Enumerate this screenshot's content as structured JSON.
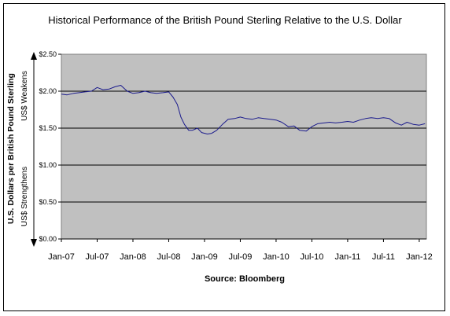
{
  "chart_data": {
    "type": "line",
    "title": "Historical Performance of the British Pound Sterling Relative to the U.S. Dollar",
    "ylabel": "U.S. Dollars per British Pound Sterling",
    "ylabel_top_note": "US$ Weakens",
    "ylabel_bottom_note": "US$ Strengthens",
    "source": "Source: Bloomberg",
    "ylim": [
      0,
      2.5
    ],
    "yticks": [
      0,
      0.5,
      1.0,
      1.5,
      2.0,
      2.5
    ],
    "ytick_labels": [
      "$0.00",
      "$0.50",
      "$1.00",
      "$1.50",
      "$2.00",
      "$2.50"
    ],
    "xlim": [
      2007.0,
      2012.1
    ],
    "xticks": [
      2007.0,
      2007.5,
      2008.0,
      2008.5,
      2009.0,
      2009.5,
      2010.0,
      2010.5,
      2011.0,
      2011.5,
      2012.0
    ],
    "xtick_labels": [
      "Jan-07",
      "Jul-07",
      "Jan-08",
      "Jul-08",
      "Jan-09",
      "Jul-09",
      "Jan-10",
      "Jul-10",
      "Jan-11",
      "Jul-11",
      "Jan-12"
    ],
    "grid": "horizontal",
    "plot_background": "#c0c0c0",
    "line_color": "#1a1a8c",
    "series": [
      {
        "x": [
          2007.0,
          2007.08,
          2007.17,
          2007.25,
          2007.33,
          2007.42,
          2007.5,
          2007.58,
          2007.67,
          2007.75,
          2007.83,
          2007.92,
          2008.0,
          2008.08,
          2008.17,
          2008.25,
          2008.33,
          2008.42,
          2008.5,
          2008.56,
          2008.62,
          2008.67,
          2008.72,
          2008.78,
          2008.83,
          2008.9,
          2008.96,
          2009.04,
          2009.1,
          2009.17,
          2009.25,
          2009.33,
          2009.42,
          2009.5,
          2009.58,
          2009.67,
          2009.75,
          2009.83,
          2009.92,
          2010.0,
          2010.08,
          2010.17,
          2010.25,
          2010.33,
          2010.42,
          2010.5,
          2010.58,
          2010.67,
          2010.75,
          2010.83,
          2010.92,
          2011.0,
          2011.08,
          2011.17,
          2011.25,
          2011.33,
          2011.42,
          2011.5,
          2011.58,
          2011.67,
          2011.75,
          2011.83,
          2011.92,
          2012.0,
          2012.08
        ],
        "values": [
          1.96,
          1.95,
          1.97,
          1.98,
          1.99,
          2.0,
          2.05,
          2.02,
          2.03,
          2.06,
          2.08,
          2.0,
          1.97,
          1.98,
          2.0,
          1.98,
          1.97,
          1.98,
          1.99,
          1.92,
          1.82,
          1.65,
          1.55,
          1.47,
          1.47,
          1.5,
          1.44,
          1.42,
          1.43,
          1.47,
          1.55,
          1.62,
          1.63,
          1.65,
          1.63,
          1.62,
          1.64,
          1.63,
          1.62,
          1.61,
          1.58,
          1.52,
          1.53,
          1.47,
          1.46,
          1.52,
          1.56,
          1.57,
          1.58,
          1.57,
          1.58,
          1.59,
          1.58,
          1.61,
          1.63,
          1.64,
          1.63,
          1.64,
          1.63,
          1.57,
          1.54,
          1.58,
          1.55,
          1.54,
          1.56
        ]
      }
    ]
  }
}
